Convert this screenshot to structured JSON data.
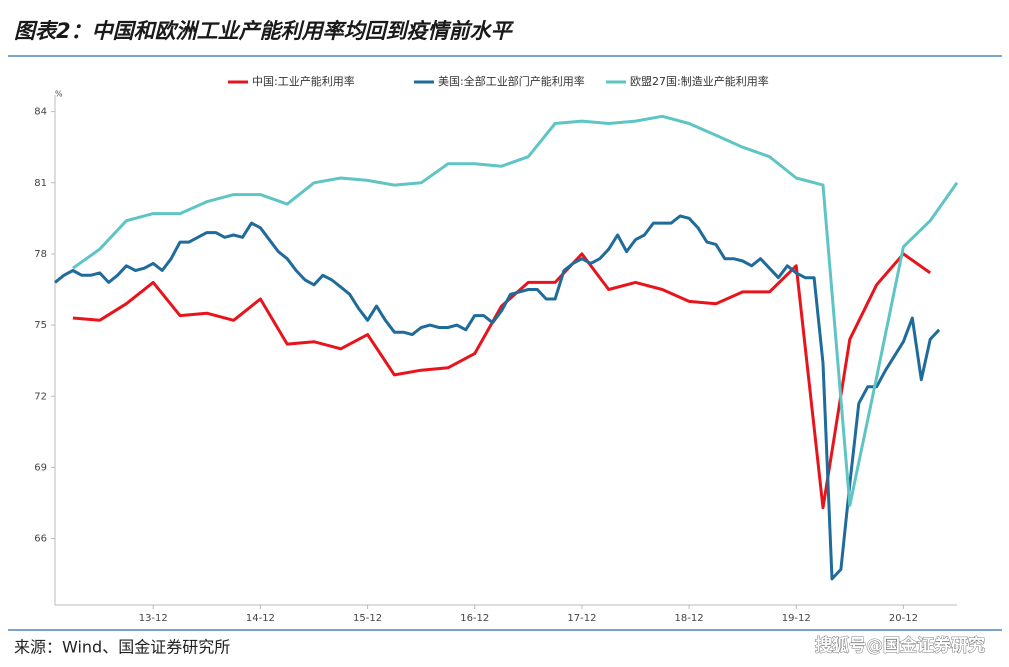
{
  "chart_data": {
    "type": "line",
    "title": "图表2：中国和欧洲工业产能利用率均回到疫情前水平",
    "source": "来源：Wind、国金证券研究所",
    "watermark": "搜狐号@国金证券研究",
    "y_unit": "%",
    "xlim": [
      "13-01",
      "21-06"
    ],
    "xticks": [
      "13-12",
      "14-12",
      "15-12",
      "16-12",
      "17-12",
      "18-12",
      "19-12",
      "20-12"
    ],
    "ylim": [
      63.2,
      84.7
    ],
    "yticks": [
      66,
      69,
      72,
      75,
      78,
      81,
      84
    ],
    "grid": false,
    "legend": "top",
    "series": [
      {
        "name": "中国:工业产能利用率",
        "color": "#e8141b",
        "x": [
          "13-03",
          "13-06",
          "13-09",
          "13-12",
          "14-03",
          "14-06",
          "14-09",
          "14-12",
          "15-03",
          "15-06",
          "15-09",
          "15-12",
          "16-03",
          "16-06",
          "16-09",
          "16-12",
          "17-03",
          "17-06",
          "17-09",
          "17-12",
          "18-03",
          "18-06",
          "18-09",
          "18-12",
          "19-03",
          "19-06",
          "19-09",
          "19-12",
          "20-03",
          "20-06",
          "20-09",
          "20-12",
          "21-03"
        ],
        "values": [
          75.3,
          75.2,
          75.9,
          76.8,
          75.4,
          75.5,
          75.2,
          76.1,
          74.2,
          74.3,
          74.0,
          74.6,
          72.9,
          73.1,
          73.2,
          73.8,
          75.8,
          76.8,
          76.8,
          78.0,
          76.5,
          76.8,
          76.5,
          76.0,
          75.9,
          76.4,
          76.4,
          77.5,
          67.3,
          74.4,
          76.7,
          78.0,
          77.2
        ]
      },
      {
        "name": "美国:全部工业部门产能利用率",
        "color": "#1f6b9a",
        "x": [
          "13-01",
          "13-02",
          "13-03",
          "13-04",
          "13-05",
          "13-06",
          "13-07",
          "13-08",
          "13-09",
          "13-10",
          "13-11",
          "13-12",
          "14-01",
          "14-02",
          "14-03",
          "14-04",
          "14-05",
          "14-06",
          "14-07",
          "14-08",
          "14-09",
          "14-10",
          "14-11",
          "14-12",
          "15-01",
          "15-02",
          "15-03",
          "15-04",
          "15-05",
          "15-06",
          "15-07",
          "15-08",
          "15-09",
          "15-10",
          "15-11",
          "15-12",
          "16-01",
          "16-02",
          "16-03",
          "16-04",
          "16-05",
          "16-06",
          "16-07",
          "16-08",
          "16-09",
          "16-10",
          "16-11",
          "16-12",
          "17-01",
          "17-02",
          "17-03",
          "17-04",
          "17-05",
          "17-06",
          "17-07",
          "17-08",
          "17-09",
          "17-10",
          "17-11",
          "17-12",
          "18-01",
          "18-02",
          "18-03",
          "18-04",
          "18-05",
          "18-06",
          "18-07",
          "18-08",
          "18-09",
          "18-10",
          "18-11",
          "18-12",
          "19-01",
          "19-02",
          "19-03",
          "19-04",
          "19-05",
          "19-06",
          "19-07",
          "19-08",
          "19-09",
          "19-10",
          "19-11",
          "19-12",
          "20-01",
          "20-02",
          "20-03",
          "20-04",
          "20-05",
          "20-06",
          "20-07",
          "20-08",
          "20-09",
          "20-10",
          "20-11",
          "20-12",
          "21-01",
          "21-02",
          "21-03",
          "21-04"
        ],
        "values": [
          76.8,
          77.1,
          77.3,
          77.1,
          77.1,
          77.2,
          76.8,
          77.1,
          77.5,
          77.3,
          77.4,
          77.6,
          77.3,
          77.8,
          78.5,
          78.5,
          78.7,
          78.9,
          78.9,
          78.7,
          78.8,
          78.7,
          79.3,
          79.1,
          78.6,
          78.1,
          77.8,
          77.3,
          76.9,
          76.7,
          77.1,
          76.9,
          76.6,
          76.3,
          75.7,
          75.2,
          75.8,
          75.2,
          74.7,
          74.7,
          74.6,
          74.9,
          75.0,
          74.9,
          74.9,
          75.0,
          74.8,
          75.4,
          75.4,
          75.1,
          75.6,
          76.3,
          76.4,
          76.5,
          76.5,
          76.1,
          76.1,
          77.3,
          77.6,
          77.8,
          77.6,
          77.8,
          78.2,
          78.8,
          78.1,
          78.6,
          78.8,
          79.3,
          79.3,
          79.3,
          79.6,
          79.5,
          79.1,
          78.5,
          78.4,
          77.8,
          77.8,
          77.7,
          77.5,
          77.8,
          77.4,
          77.0,
          77.5,
          77.2,
          77.0,
          77.0,
          73.4,
          64.3,
          64.7,
          68.3,
          71.7,
          72.4,
          72.4,
          73.1,
          73.7,
          74.3,
          75.3,
          72.7,
          74.4,
          74.8
        ]
      },
      {
        "name": "欧盟27国:制造业产能利用率",
        "color": "#5fc4c4",
        "x": [
          "13-03",
          "13-06",
          "13-09",
          "13-12",
          "14-03",
          "14-06",
          "14-09",
          "14-12",
          "15-03",
          "15-06",
          "15-09",
          "15-12",
          "16-03",
          "16-06",
          "16-09",
          "16-12",
          "17-03",
          "17-06",
          "17-09",
          "17-12",
          "18-03",
          "18-06",
          "18-09",
          "18-12",
          "19-03",
          "19-06",
          "19-09",
          "19-12",
          "20-03",
          "20-06",
          "20-09",
          "20-12",
          "21-03",
          "21-06"
        ],
        "values": [
          77.4,
          78.2,
          79.4,
          79.7,
          79.7,
          80.2,
          80.5,
          80.5,
          80.1,
          81.0,
          81.2,
          81.1,
          80.9,
          81.0,
          81.8,
          81.8,
          81.7,
          82.1,
          83.5,
          83.6,
          83.5,
          83.6,
          83.8,
          83.5,
          83.0,
          82.5,
          82.1,
          81.2,
          80.9,
          67.4,
          72.8,
          78.3,
          79.4,
          81.0
        ]
      }
    ]
  }
}
